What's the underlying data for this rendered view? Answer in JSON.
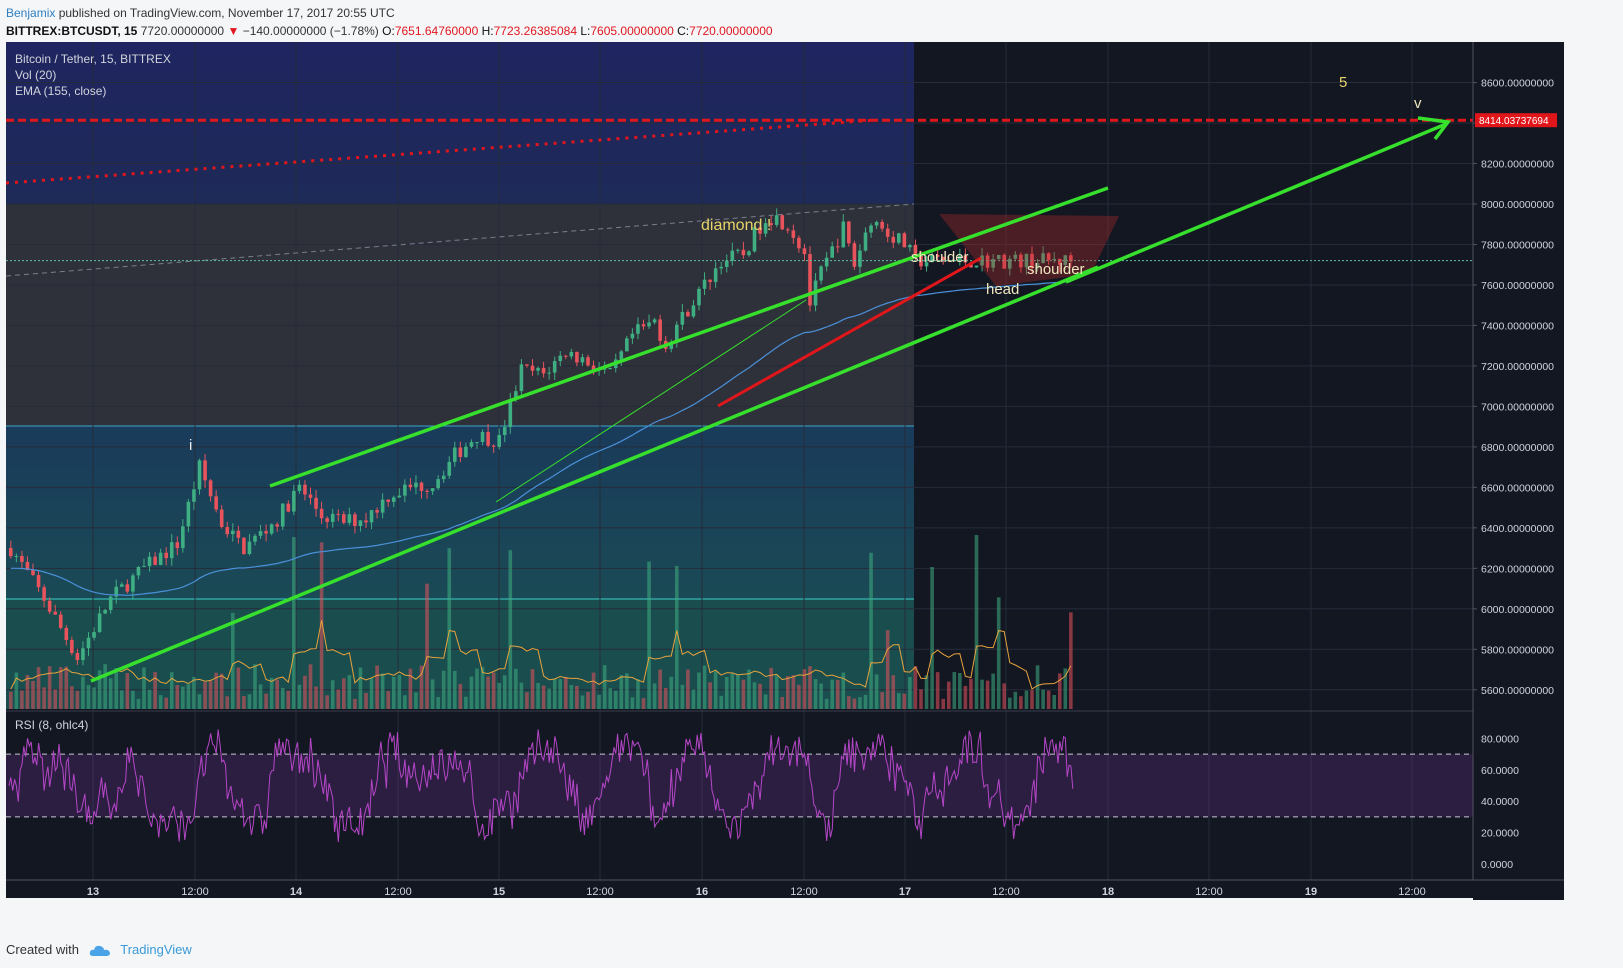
{
  "header": {
    "user": "Benjamix",
    "published": "published on TradingView.com, November 17, 2017 20:55 UTC",
    "symbol": "BITTREX:BTCUSDT, 15",
    "price": "7720.00000000",
    "change": "−140.00000000 (−1.78%)",
    "o_label": "O:",
    "o_val": "7651.64760000",
    "h_label": "H:",
    "h_val": "7723.26385084",
    "l_label": "L:",
    "l_val": "7605.00000000",
    "c_label": "C:",
    "c_val": "7720.00000000"
  },
  "legend": {
    "title": "Bitcoin / Tether, 15, BITTREX",
    "vol": "Vol (20)",
    "ema": "EMA (155, close)",
    "rsi": "RSI (8, ohlc4)"
  },
  "footer": {
    "created": "Created with",
    "brand": "TradingView"
  },
  "colors": {
    "up": "#3fae82",
    "down": "#e8535c",
    "green_line": "#36e02c",
    "red_line": "#e1161b",
    "ema": "#4a90d9",
    "rsi": "#b646c8",
    "bg": "#131722"
  },
  "chart_data": {
    "type": "candlestick",
    "price_axis": {
      "ticks": [
        "8600.00000000",
        "8400.00000000",
        "8200.00000000",
        "8000.00000000",
        "7800.00000000",
        "7600.00000000",
        "7400.00000000",
        "7200.00000000",
        "7000.00000000",
        "6800.00000000",
        "6600.00000000",
        "6400.00000000",
        "6200.00000000",
        "6000.00000000",
        "5800.00000000",
        "5600.00000000"
      ],
      "ylim": [
        5500,
        8830
      ]
    },
    "time_axis": {
      "ticks": [
        "13",
        "12:00",
        "14",
        "12:00",
        "15",
        "12:00",
        "16",
        "12:00",
        "17",
        "12:00",
        "18",
        "12:00",
        "19",
        "12:00"
      ]
    },
    "rsi_axis": {
      "ticks": [
        "80.0000",
        "60.0000",
        "40.0000",
        "20.0000",
        "0.0000"
      ],
      "levels": [
        70,
        30
      ]
    },
    "target_label": "8414.03737694",
    "target_price": 8414.04,
    "last_price": 7720,
    "price_path": [
      [
        0,
        6300
      ],
      [
        6,
        6050
      ],
      [
        12,
        5760
      ],
      [
        18,
        6050
      ],
      [
        24,
        6200
      ],
      [
        30,
        6320
      ],
      [
        34,
        6700
      ],
      [
        38,
        6420
      ],
      [
        42,
        6300
      ],
      [
        48,
        6440
      ],
      [
        52,
        6600
      ],
      [
        56,
        6460
      ],
      [
        60,
        6430
      ],
      [
        64,
        6450
      ],
      [
        68,
        6560
      ],
      [
        72,
        6600
      ],
      [
        76,
        6620
      ],
      [
        80,
        6760
      ],
      [
        84,
        6860
      ],
      [
        88,
        6830
      ],
      [
        92,
        7180
      ],
      [
        96,
        7160
      ],
      [
        100,
        7270
      ],
      [
        104,
        7220
      ],
      [
        108,
        7150
      ],
      [
        112,
        7350
      ],
      [
        116,
        7420
      ],
      [
        118,
        7300
      ],
      [
        120,
        7400
      ],
      [
        124,
        7560
      ],
      [
        128,
        7720
      ],
      [
        132,
        7750
      ],
      [
        136,
        7940
      ],
      [
        138,
        7930
      ],
      [
        140,
        7900
      ],
      [
        143,
        7760
      ],
      [
        144,
        7510
      ],
      [
        146,
        7660
      ],
      [
        150,
        7880
      ],
      [
        152,
        7700
      ],
      [
        155,
        7930
      ],
      [
        158,
        7860
      ],
      [
        161,
        7800
      ],
      [
        163,
        7720
      ]
    ],
    "annotations": [
      "diamond !",
      "shoulder",
      "head",
      "shoulder",
      "i",
      "5",
      "v"
    ]
  }
}
